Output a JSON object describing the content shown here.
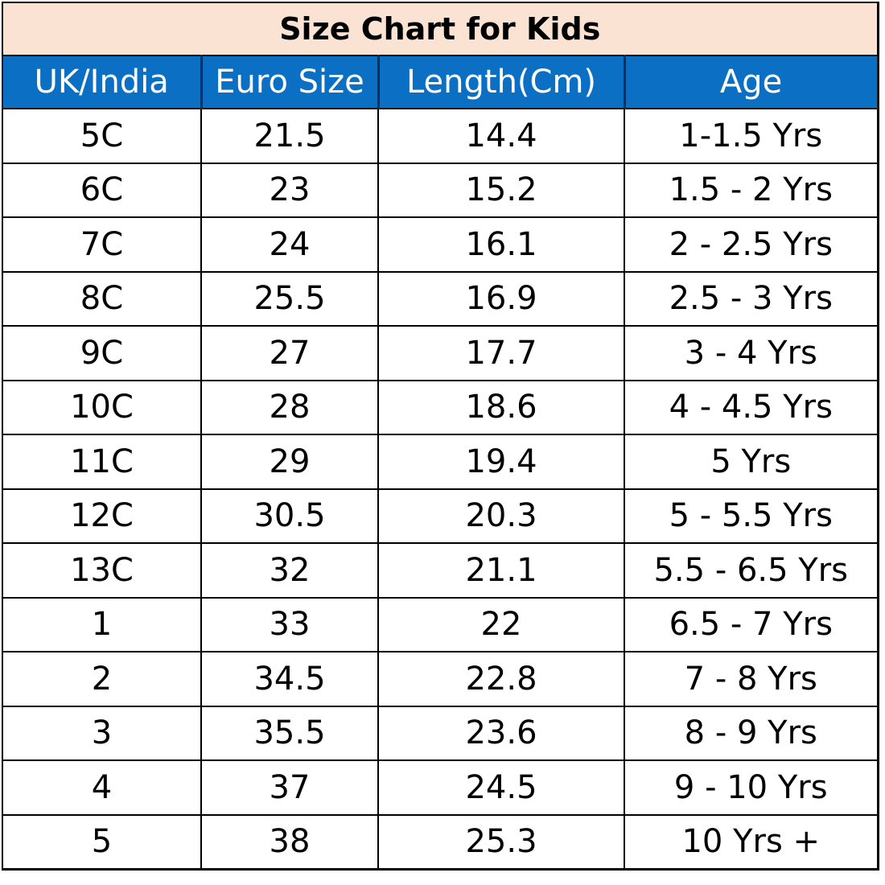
{
  "title": "Size Chart for Kids",
  "colors": {
    "title_background": "#fbe3d4",
    "header_background": "#0b70c4",
    "header_text": "#ffffff",
    "body_text": "#000000"
  },
  "columns": [
    "UK/India",
    "Euro Size",
    "Length(Cm)",
    "Age"
  ],
  "rows": [
    [
      "5C",
      "21.5",
      "14.4",
      "1-1.5 Yrs"
    ],
    [
      "6C",
      "23",
      "15.2",
      "1.5 - 2 Yrs"
    ],
    [
      "7C",
      "24",
      "16.1",
      "2 - 2.5 Yrs"
    ],
    [
      "8C",
      "25.5",
      "16.9",
      "2.5 - 3 Yrs"
    ],
    [
      "9C",
      "27",
      "17.7",
      "3 - 4 Yrs"
    ],
    [
      "10C",
      "28",
      "18.6",
      "4 - 4.5 Yrs"
    ],
    [
      "11C",
      "29",
      "19.4",
      "5 Yrs"
    ],
    [
      "12C",
      "30.5",
      "20.3",
      "5 - 5.5 Yrs"
    ],
    [
      "13C",
      "32",
      "21.1",
      "5.5 - 6.5 Yrs"
    ],
    [
      "1",
      "33",
      "22",
      "6.5 - 7 Yrs"
    ],
    [
      "2",
      "34.5",
      "22.8",
      "7 - 8 Yrs"
    ],
    [
      "3",
      "35.5",
      "23.6",
      "8 - 9 Yrs"
    ],
    [
      "4",
      "37",
      "24.5",
      "9 - 10  Yrs"
    ],
    [
      "5",
      "38",
      "25.3",
      "10 Yrs +"
    ]
  ]
}
